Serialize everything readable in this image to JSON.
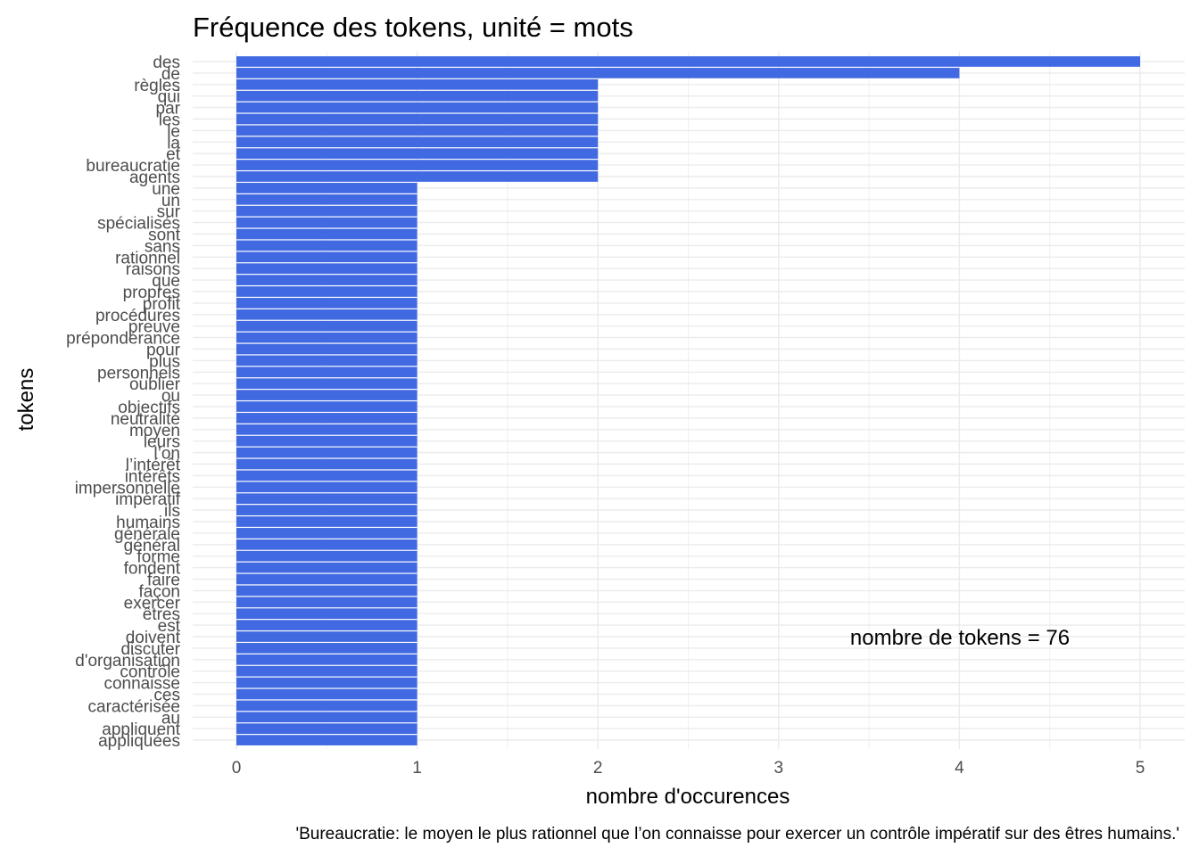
{
  "chart_data": {
    "type": "bar",
    "orientation": "horizontal",
    "title": "Fréquence des tokens, unité = mots",
    "xlabel": "nombre d'occurences",
    "ylabel": "tokens",
    "annotation": "nombre de tokens = 76",
    "caption": "'Bureaucratie: le moyen le plus rationnel que l’on connaisse pour exercer un contrôle impératif sur des êtres humains.'",
    "bar_color": "#4169E1",
    "grid": true,
    "xlim": [
      0,
      5
    ],
    "xticks": [
      "0",
      "1",
      "2",
      "3",
      "4",
      "5"
    ],
    "categories": [
      "des",
      "de",
      "règles",
      "qui",
      "par",
      "les",
      "le",
      "la",
      "et",
      "bureaucratie",
      "agents",
      "une",
      "un",
      "sur",
      "spécialisés",
      "sont",
      "sans",
      "rationnel",
      "raisons",
      "que",
      "propres",
      "profit",
      "procédures",
      "preuve",
      "prépondérance",
      "pour",
      "plus",
      "personnels",
      "oublier",
      "ou",
      "objectifs",
      "neutralité",
      "moyen",
      "leurs",
      "l’on",
      "l’intérêt",
      "intérêts",
      "impersonnelle",
      "impératif",
      "ils",
      "humains",
      "générale",
      "général",
      "forme",
      "fondent",
      "faire",
      "façon",
      "exercer",
      "êtres",
      "est",
      "doivent",
      "discuter",
      "d'organisation",
      "contrôle",
      "connaisse",
      "ces",
      "caractérisée",
      "au",
      "appliquent",
      "appliquées"
    ],
    "values": [
      5,
      4,
      2,
      2,
      2,
      2,
      2,
      2,
      2,
      2,
      2,
      1,
      1,
      1,
      1,
      1,
      1,
      1,
      1,
      1,
      1,
      1,
      1,
      1,
      1,
      1,
      1,
      1,
      1,
      1,
      1,
      1,
      1,
      1,
      1,
      1,
      1,
      1,
      1,
      1,
      1,
      1,
      1,
      1,
      1,
      1,
      1,
      1,
      1,
      1,
      1,
      1,
      1,
      1,
      1,
      1,
      1,
      1,
      1,
      1
    ]
  }
}
